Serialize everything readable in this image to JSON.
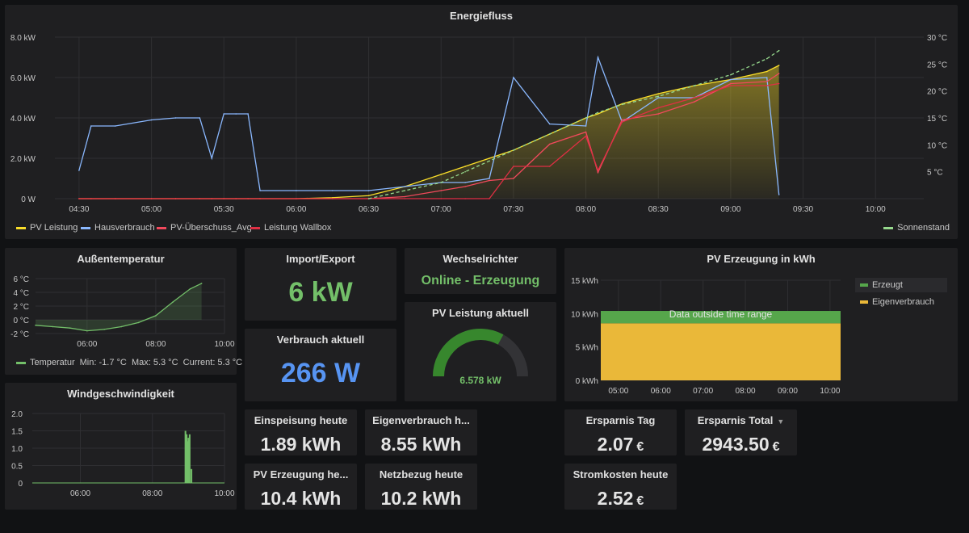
{
  "energiefluss": {
    "title": "Energiefluss",
    "y_left_ticks": [
      "8.0 kW",
      "6.0 kW",
      "4.0 kW",
      "2.0 kW",
      "0 W"
    ],
    "y_right_ticks": [
      "30 °C",
      "25 °C",
      "20 °C",
      "15 °C",
      "10 °C",
      "5 °C"
    ],
    "x_ticks": [
      "04:30",
      "05:00",
      "05:30",
      "06:00",
      "06:30",
      "07:00",
      "07:30",
      "08:00",
      "08:30",
      "09:00",
      "09:30",
      "10:00"
    ],
    "legend": [
      {
        "label": "PV Leistung",
        "color": "#fade2a"
      },
      {
        "label": "Hausverbrauch",
        "color": "#8ab8ff"
      },
      {
        "label": "PV-Überschuss_Avg",
        "color": "#f2495c"
      },
      {
        "label": "Leistung Wallbox",
        "color": "#e02f44"
      }
    ],
    "legend_right": {
      "label": "Sonnenstand",
      "color": "#96d98d"
    }
  },
  "chart_data": [
    {
      "type": "line",
      "title": "Energiefluss",
      "ylim": [
        0,
        8
      ],
      "y2lim": [
        0,
        30
      ],
      "x": [
        "04:30",
        "04:35",
        "04:45",
        "05:00",
        "05:10",
        "05:20",
        "05:25",
        "05:30",
        "05:35",
        "05:40",
        "05:45",
        "06:00",
        "06:15",
        "06:30",
        "06:45",
        "07:00",
        "07:10",
        "07:20",
        "07:30",
        "07:45",
        "08:00",
        "08:05",
        "08:15",
        "08:30",
        "08:45",
        "09:00",
        "09:15",
        "09:20"
      ],
      "series": [
        {
          "name": "PV Leistung",
          "values": [
            0,
            0,
            0,
            0,
            0,
            0,
            0,
            0,
            0,
            0,
            0,
            0,
            0.05,
            0.15,
            0.6,
            1.2,
            1.6,
            2.0,
            2.4,
            3.2,
            4.0,
            4.2,
            4.7,
            5.2,
            5.6,
            5.9,
            6.3,
            6.6
          ]
        },
        {
          "name": "Hausverbrauch",
          "values": [
            1.4,
            3.6,
            3.6,
            3.9,
            4.0,
            4.0,
            2.0,
            4.2,
            4.2,
            4.2,
            0.4,
            0.4,
            0.4,
            0.4,
            0.6,
            0.8,
            0.8,
            1.0,
            6.0,
            3.7,
            3.6,
            7.0,
            3.8,
            5.0,
            5.0,
            5.9,
            6.0,
            0.2
          ]
        },
        {
          "name": "PV-Überschuss_Avg",
          "values": [
            0,
            0,
            0,
            0,
            0,
            0,
            0,
            0,
            0,
            0,
            0,
            0,
            0,
            0,
            0.1,
            0.4,
            0.6,
            0.9,
            1.0,
            2.7,
            3.3,
            1.3,
            3.9,
            4.2,
            4.8,
            5.7,
            5.8,
            6.2
          ]
        },
        {
          "name": "Leistung Wallbox",
          "values": [
            0,
            0,
            0,
            0,
            0,
            0,
            0,
            0,
            0,
            0,
            0,
            0,
            0,
            0,
            0,
            0,
            0,
            0,
            1.6,
            1.6,
            3.1,
            1.4,
            3.8,
            4.5,
            5.0,
            5.6,
            5.6,
            5.7
          ]
        },
        {
          "name": "Sonnenstand",
          "axis": "right",
          "values": [
            null,
            null,
            null,
            null,
            null,
            null,
            null,
            null,
            null,
            null,
            null,
            null,
            null,
            0,
            1.5,
            3,
            5,
            7,
            9,
            12,
            15,
            16,
            17.5,
            19,
            21,
            23,
            26,
            27.5
          ]
        }
      ]
    },
    {
      "type": "area",
      "title": "Außentemperatur",
      "ylim": [
        -2,
        6
      ],
      "x": [
        "04:30",
        "05:00",
        "05:30",
        "06:00",
        "06:30",
        "07:00",
        "07:30",
        "08:00",
        "08:30",
        "09:00",
        "09:20"
      ],
      "series": [
        {
          "name": "Temperatur",
          "values": [
            -0.8,
            -1.0,
            -1.2,
            -1.6,
            -1.4,
            -1.0,
            -0.4,
            0.6,
            2.6,
            4.5,
            5.3
          ]
        }
      ]
    },
    {
      "type": "bar",
      "title": "Windgeschwindigkeit",
      "ylim": [
        0,
        2
      ],
      "x": [
        "08:55",
        "08:57",
        "08:58",
        "09:00",
        "09:02",
        "09:05"
      ],
      "series": [
        {
          "name": "Windgeschwindigkeit",
          "values": [
            1.5,
            1.4,
            1.2,
            1.3,
            1.4,
            0.4
          ]
        }
      ]
    },
    {
      "type": "bar",
      "title": "PV Erzeugung in kWh",
      "ylim": [
        0,
        15
      ],
      "series": [
        {
          "name": "Eigenverbrauch",
          "values": [
            8.55
          ]
        },
        {
          "name": "Erzeugt",
          "values": [
            10.4
          ]
        }
      ]
    }
  ],
  "temp": {
    "title": "Außentemperatur",
    "y_ticks": [
      "6 °C",
      "4 °C",
      "2 °C",
      "0 °C",
      "-2 °C"
    ],
    "x_ticks": [
      "06:00",
      "08:00",
      "10:00"
    ],
    "legend_label": "Temperatur",
    "stats": "Min: -1.7 °C  Max: 5.3 °C  Current: 5.3 °C",
    "color": "#73bf69"
  },
  "wind": {
    "title": "Windgeschwindigkeit",
    "y_ticks": [
      "2.0",
      "1.5",
      "1.0",
      "0.5",
      "0"
    ],
    "x_ticks": [
      "06:00",
      "08:00",
      "10:00"
    ]
  },
  "import_export": {
    "title": "Import/Export",
    "value": "6 kW",
    "color": "#73bf69"
  },
  "verbrauch": {
    "title": "Verbrauch aktuell",
    "value": "266 W",
    "color": "#5794f2"
  },
  "wechselrichter": {
    "title": "Wechselrichter",
    "value": "Online - Erzeugung",
    "color": "#73bf69"
  },
  "pv_aktuell": {
    "title": "PV Leistung aktuell",
    "value": "6.578 kW",
    "gauge_fraction": 0.66,
    "color": "#37872d"
  },
  "pv_kwh": {
    "title": "PV Erzeugung in kWh",
    "y_ticks": [
      "15 kWh",
      "10 kWh",
      "5 kWh",
      "0 kWh"
    ],
    "x_ticks": [
      "05:00",
      "06:00",
      "07:00",
      "08:00",
      "09:00",
      "10:00"
    ],
    "overlay": "Data outside time range",
    "legend": [
      {
        "label": "Erzeugt",
        "color": "#56a64b"
      },
      {
        "label": "Eigenverbrauch",
        "color": "#eab839"
      }
    ]
  },
  "stats": {
    "einspeisung": {
      "title": "Einspeisung heute",
      "value": "1.89 kWh"
    },
    "eigenverbrauch": {
      "title": "Eigenverbrauch h...",
      "value": "8.55 kWh"
    },
    "pv_erzeugung": {
      "title": "PV Erzeugung he...",
      "value": "10.4 kWh"
    },
    "netzbezug": {
      "title": "Netzbezug heute",
      "value": "10.2 kWh"
    },
    "ersparnis_tag": {
      "title": "Ersparnis Tag",
      "value": "2.07",
      "unit": "€"
    },
    "ersparnis_total": {
      "title": "Ersparnis Total",
      "value": "2943.50",
      "unit": "€"
    },
    "stromkosten": {
      "title": "Stromkosten heute",
      "value": "2.52",
      "unit": "€"
    }
  }
}
